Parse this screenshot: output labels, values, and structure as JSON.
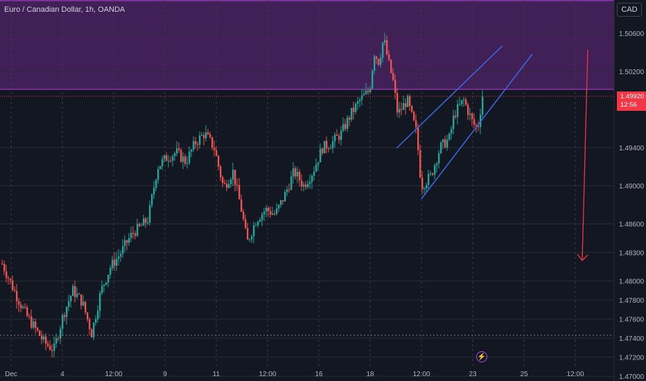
{
  "header": {
    "title": "Euro / Canadian Dollar, 1h, OANDA",
    "currency": "CAD"
  },
  "price_axis": {
    "labels": [
      "1.50600",
      "1.50200",
      "1.49400",
      "1.49000",
      "1.48600",
      "1.48300",
      "1.48000",
      "1.47800",
      "1.47600",
      "1.47400",
      "1.47200",
      "1.47000"
    ]
  },
  "current_price": {
    "value": "1.49920",
    "countdown": "12:56"
  },
  "time_axis": {
    "labels": [
      "Dec",
      "4",
      "12:00",
      "9",
      "11",
      "12:00",
      "16",
      "18",
      "12:00",
      "23",
      "25",
      "12:00"
    ]
  },
  "icons": {
    "alert": "lightning-bolt-icon"
  },
  "colors": {
    "background": "#131722",
    "bull": "#26a69a",
    "bear": "#ef5350",
    "zone": "#5b2a6e",
    "zone_line": "#b53fdb",
    "channel": "#3b6be8",
    "arrow": "#f23645"
  },
  "chart_data": {
    "type": "candlestick",
    "title": "Euro / Canadian Dollar, 1h, OANDA",
    "y_range": [
      1.4695,
      1.5095
    ],
    "current_price": 1.4992,
    "resistance_zone": [
      1.4996,
      1.5095
    ],
    "close_path": [
      [
        0,
        1.4818
      ],
      [
        3,
        1.4785
      ],
      [
        5,
        1.4765
      ],
      [
        7,
        1.475
      ],
      [
        9,
        1.4735
      ],
      [
        11,
        1.4728
      ],
      [
        13,
        1.4765
      ],
      [
        15,
        1.479
      ],
      [
        17,
        1.4778
      ],
      [
        19,
        1.4745
      ],
      [
        21,
        1.479
      ],
      [
        23,
        1.4815
      ],
      [
        25,
        1.4828
      ],
      [
        27,
        1.4845
      ],
      [
        28,
        1.4852
      ],
      [
        29,
        1.4855
      ],
      [
        31,
        1.4865
      ],
      [
        33,
        1.492
      ],
      [
        35,
        1.493
      ],
      [
        37,
        1.4935
      ],
      [
        39,
        1.4925
      ],
      [
        41,
        1.4945
      ],
      [
        43,
        1.4955
      ],
      [
        45,
        1.494
      ],
      [
        47,
        1.4898
      ],
      [
        49,
        1.4915
      ],
      [
        51,
        1.487
      ],
      [
        52,
        1.484
      ],
      [
        54,
        1.4865
      ],
      [
        56,
        1.4875
      ],
      [
        58,
        1.487
      ],
      [
        60,
        1.489
      ],
      [
        62,
        1.4915
      ],
      [
        64,
        1.49
      ],
      [
        66,
        1.4915
      ],
      [
        68,
        1.494
      ],
      [
        70,
        1.4945
      ],
      [
        72,
        1.4955
      ],
      [
        74,
        1.4975
      ],
      [
        76,
        1.499
      ],
      [
        78,
        1.5
      ],
      [
        79,
        1.504
      ],
      [
        80,
        1.503
      ],
      [
        81,
        1.5055
      ],
      [
        82,
        1.503
      ],
      [
        83,
        1.501
      ],
      [
        84,
        1.4975
      ],
      [
        86,
        1.499
      ],
      [
        88,
        1.4955
      ],
      [
        89,
        1.49
      ],
      [
        91,
        1.491
      ],
      [
        93,
        1.494
      ],
      [
        95,
        1.495
      ],
      [
        96,
        1.4975
      ],
      [
        98,
        1.499
      ],
      [
        100,
        1.4965
      ],
      [
        101,
        1.496
      ],
      [
        102,
        1.4995
      ]
    ]
  }
}
